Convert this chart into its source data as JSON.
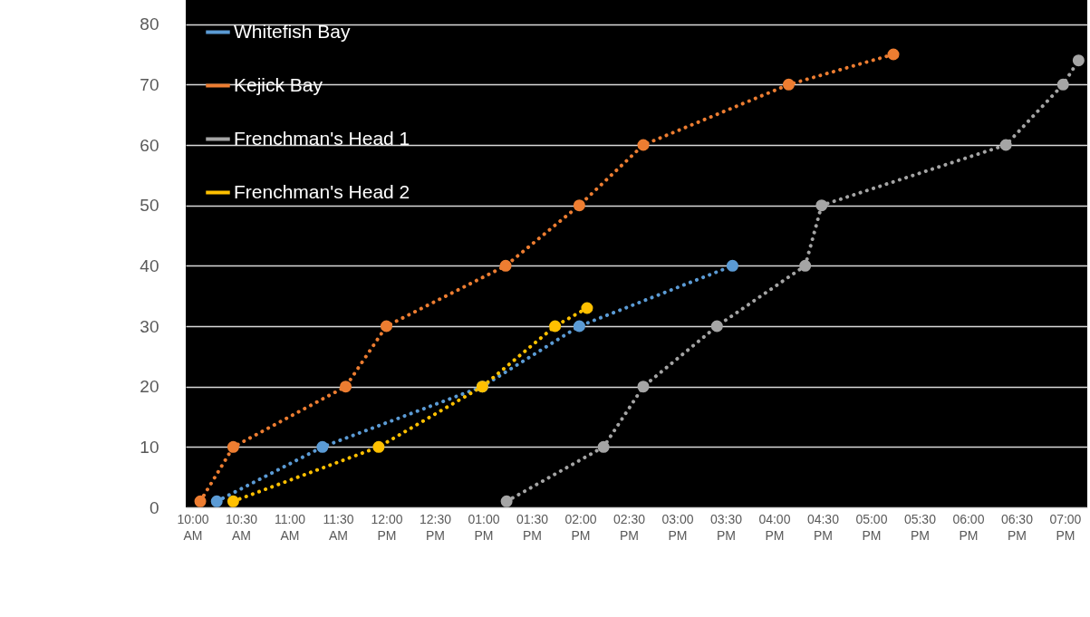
{
  "chart_data": {
    "type": "line",
    "xlim": [
      9.93,
      19.23
    ],
    "ylim": [
      0,
      84
    ],
    "yticks": [
      0,
      10,
      20,
      30,
      40,
      50,
      60,
      70,
      80
    ],
    "xticks": [
      {
        "value": 10,
        "label": "10:00 AM"
      },
      {
        "value": 10.5,
        "label": "10:30 AM"
      },
      {
        "value": 11,
        "label": "11:00 AM"
      },
      {
        "value": 11.5,
        "label": "11:30 AM"
      },
      {
        "value": 12,
        "label": "12:00 PM"
      },
      {
        "value": 12.5,
        "label": "12:30 PM"
      },
      {
        "value": 13,
        "label": "01:00 PM"
      },
      {
        "value": 13.5,
        "label": "01:30 PM"
      },
      {
        "value": 14,
        "label": "02:00 PM"
      },
      {
        "value": 14.5,
        "label": "02:30 PM"
      },
      {
        "value": 15,
        "label": "03:00 PM"
      },
      {
        "value": 15.5,
        "label": "03:30 PM"
      },
      {
        "value": 16,
        "label": "04:00 PM"
      },
      {
        "value": 16.5,
        "label": "04:30 PM"
      },
      {
        "value": 17,
        "label": "05:00 PM"
      },
      {
        "value": 17.5,
        "label": "05:30 PM"
      },
      {
        "value": 18,
        "label": "06:00 PM"
      },
      {
        "value": 18.5,
        "label": "06:30 PM"
      },
      {
        "value": 19,
        "label": "07:00 PM"
      }
    ],
    "grid": "y",
    "legend": "top left",
    "marker": "circle",
    "line_style": "dotted",
    "series": [
      {
        "name": "Whitefish Bay",
        "color": "#5b9bd5",
        "x": [
          10.25,
          11.34,
          12.99,
          13.99,
          15.57
        ],
        "values": [
          1,
          10,
          20,
          30,
          40
        ]
      },
      {
        "name": "Kejick Bay",
        "color": "#ed7d31",
        "x": [
          10.08,
          10.42,
          11.58,
          12.0,
          13.23,
          13.99,
          14.65,
          16.15,
          17.23
        ],
        "values": [
          1,
          10,
          20,
          30,
          40,
          50,
          60,
          70,
          75
        ]
      },
      {
        "name": "Frenchman's Head 1",
        "color": "#a5a5a5",
        "x": [
          13.24,
          14.24,
          14.65,
          15.41,
          16.32,
          16.49,
          18.39,
          18.98,
          19.14
        ],
        "values": [
          1,
          10,
          20,
          30,
          40,
          50,
          60,
          70,
          74
        ]
      },
      {
        "name": "Frenchman's Head 2",
        "color": "#ffc000",
        "x": [
          10.42,
          11.92,
          12.99,
          13.74,
          14.07
        ],
        "values": [
          1,
          10,
          20,
          30,
          33
        ]
      }
    ]
  }
}
